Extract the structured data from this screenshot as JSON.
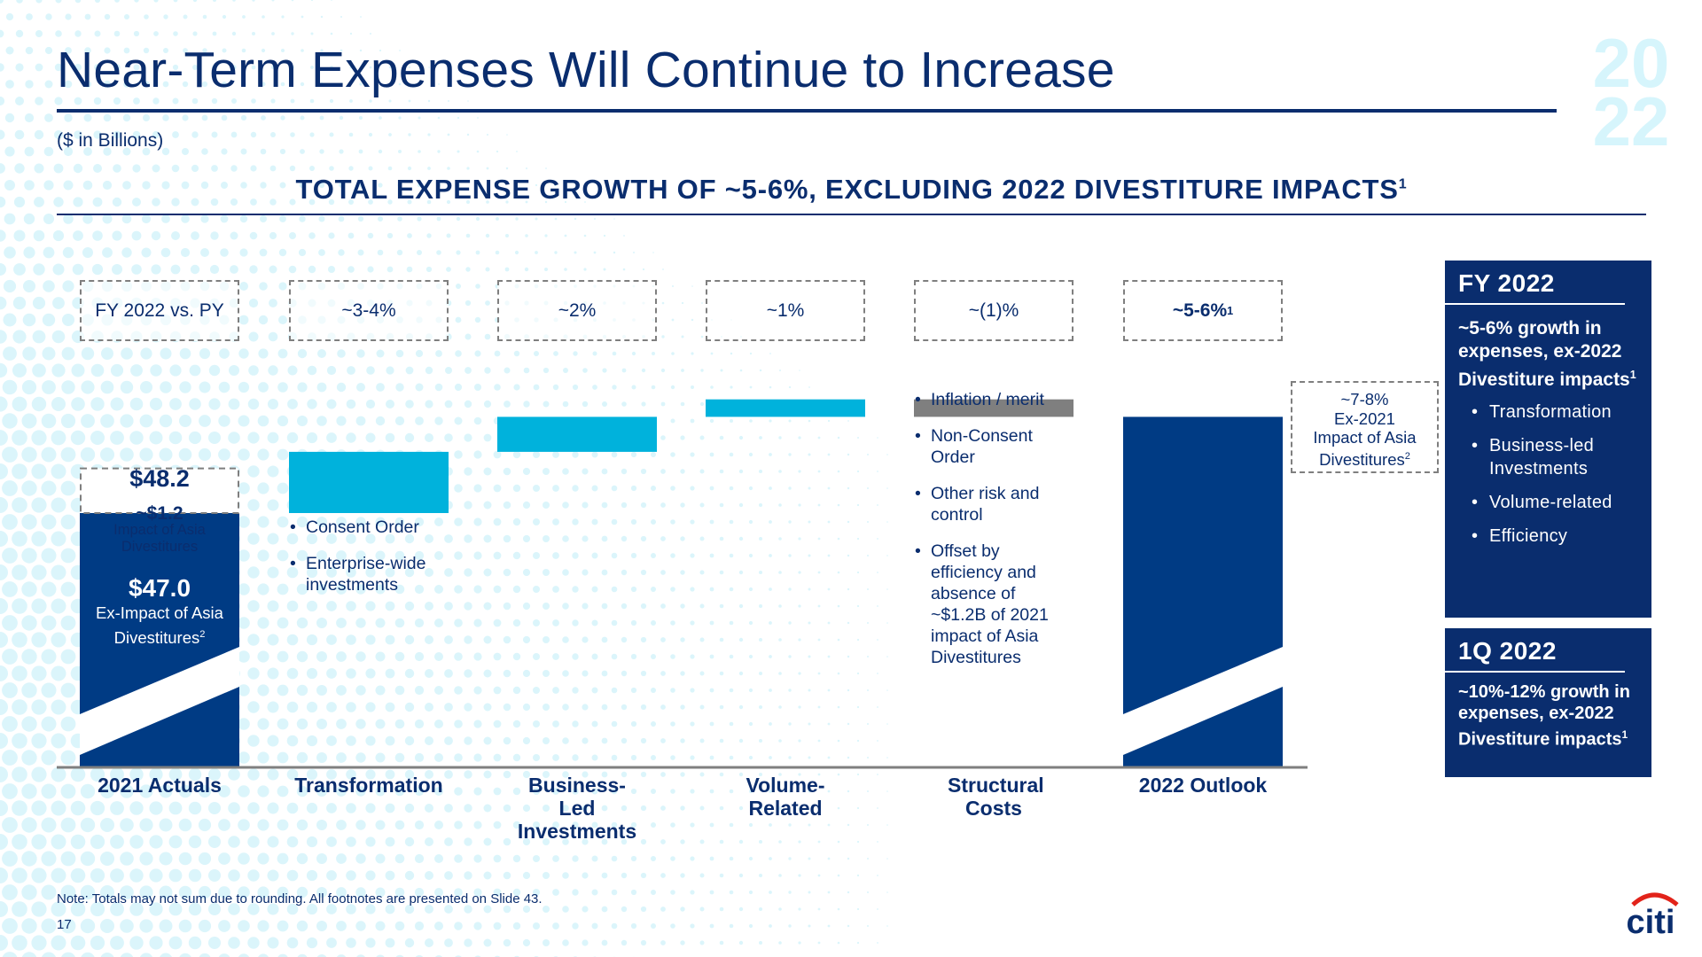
{
  "slide": {
    "title": "Near-Term Expenses Will Continue to Increase",
    "units": "($ in Billions)",
    "headline": "TOTAL EXPENSE GROWTH OF ~5-6%, EXCLUDING 2022 DIVESTITURE IMPACTS",
    "headline_sup": "1",
    "watermark_year": [
      "20",
      "22"
    ],
    "note": "Note: Totals may not sum due to rounding. All footnotes are presented on Slide 43.",
    "page_number": "17",
    "logo": "citi"
  },
  "chart_data": {
    "type": "bar",
    "subtype": "waterfall",
    "title": "TOTAL EXPENSE GROWTH OF ~5-6%, EXCLUDING 2022 DIVESTITURE IMPACTS",
    "units": "$ in Billions",
    "row_header": "FY 2022 vs. PY",
    "categories": [
      "2021 Actuals",
      "Transformation",
      "Business-Led Investments",
      "Volume-Related",
      "Structural Costs",
      "2022 Outlook"
    ],
    "growth_labels": [
      "~3-4%",
      "~2%",
      "~1%",
      "~(1)%",
      "~5-6%"
    ],
    "growth_label_sup": [
      "",
      "",
      "",
      "",
      "1"
    ],
    "growth_pct_midpoint": [
      3.5,
      2.0,
      1.0,
      -1.0,
      5.5
    ],
    "base": {
      "total_label": "$48.2",
      "total_value": 48.2,
      "asia_impact_label": "~$1.2",
      "asia_impact_value": 1.2,
      "asia_impact_caption": "Impact of Asia Divestitures",
      "ex_impact_label": "$47.0",
      "ex_impact_value": 47.0,
      "ex_impact_caption": "Ex-Impact of Asia Divestitures",
      "ex_impact_sup": "2"
    },
    "outlook_note": {
      "line1": "~7-8%",
      "line2": "Ex-2021",
      "line3": "Impact of Asia",
      "line4": "Divestitures",
      "sup": "2"
    },
    "colors": {
      "navy": "#003b84",
      "increase": "#00b2dc",
      "decrease": "#7f7f7f",
      "text": "#0a2d6e"
    },
    "bullets": {
      "transformation": [
        "Consent Order",
        "Enterprise-wide investments"
      ],
      "structural": [
        "Inflation / merit",
        "Non-Consent Order",
        "Other risk and control",
        "Offset by efficiency and absence of ~$1.2B of 2021 impact of Asia Divestitures"
      ]
    },
    "axis_break": true
  },
  "panels": {
    "fy2022": {
      "title": "FY 2022",
      "body": "~5-6% growth in expenses, ex-2022 Divestiture impacts",
      "body_sup": "1",
      "items": [
        "Transformation",
        "Business-led Investments",
        "Volume-related",
        "Efficiency"
      ]
    },
    "q1_2022": {
      "title": "1Q 2022",
      "body": "~10%-12% growth in expenses, ex-2022 Divestiture impacts",
      "body_sup": "1"
    }
  }
}
